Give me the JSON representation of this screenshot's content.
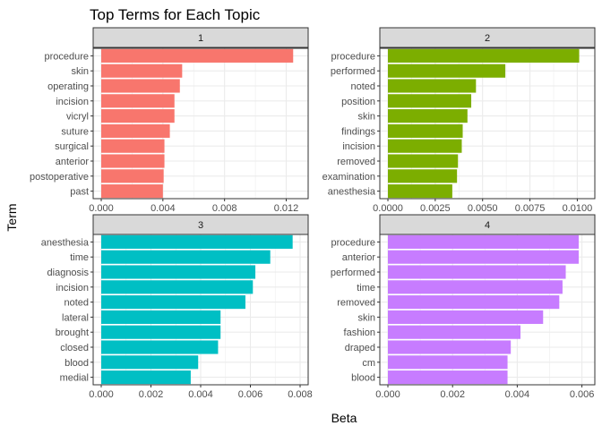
{
  "chart_data": {
    "type": "bar",
    "orientation": "horizontal",
    "title": "Top Terms for Each Topic",
    "xlabel": "Beta",
    "ylabel": "Term",
    "grid": true,
    "legend": "none",
    "panels": [
      {
        "label": "1",
        "color": "#F8766D",
        "xlim": [
          0,
          0.0129
        ],
        "xticks": [
          {
            "value": 0,
            "label": "0.000"
          },
          {
            "value": 0.004,
            "label": "0.004"
          },
          {
            "value": 0.008,
            "label": "0.008"
          },
          {
            "value": 0.012,
            "label": "0.012"
          }
        ],
        "categories": [
          "procedure",
          "skin",
          "operating",
          "incision",
          "vicryl",
          "suture",
          "surgical",
          "anterior",
          "postoperative",
          "past"
        ],
        "values": [
          0.01245,
          0.00525,
          0.0051,
          0.00475,
          0.00475,
          0.00445,
          0.0041,
          0.0041,
          0.00405,
          0.004
        ]
      },
      {
        "label": "2",
        "color": "#7CAE00",
        "xlim": [
          0,
          0.0105
        ],
        "xticks": [
          {
            "value": 0,
            "label": "0.0000"
          },
          {
            "value": 0.0025,
            "label": "0.0025"
          },
          {
            "value": 0.005,
            "label": "0.0050"
          },
          {
            "value": 0.0075,
            "label": "0.0075"
          },
          {
            "value": 0.01,
            "label": "0.0100"
          }
        ],
        "categories": [
          "procedure",
          "performed",
          "noted",
          "position",
          "skin",
          "findings",
          "incision",
          "removed",
          "examination",
          "anesthesia"
        ],
        "values": [
          0.0101,
          0.0062,
          0.00465,
          0.0044,
          0.0042,
          0.00395,
          0.0039,
          0.0037,
          0.00365,
          0.0034
        ]
      },
      {
        "label": "3",
        "color": "#00BFC4",
        "xlim": [
          0,
          0.008
        ],
        "xticks": [
          {
            "value": 0,
            "label": "0.000"
          },
          {
            "value": 0.002,
            "label": "0.002"
          },
          {
            "value": 0.004,
            "label": "0.004"
          },
          {
            "value": 0.006,
            "label": "0.006"
          },
          {
            "value": 0.008,
            "label": "0.008"
          }
        ],
        "categories": [
          "anesthesia",
          "time",
          "diagnosis",
          "incision",
          "noted",
          "lateral",
          "brought",
          "closed",
          "blood",
          "medial"
        ],
        "values": [
          0.0077,
          0.0068,
          0.0062,
          0.0061,
          0.0058,
          0.0048,
          0.0048,
          0.0047,
          0.0039,
          0.0036
        ]
      },
      {
        "label": "4",
        "color": "#C77CFF",
        "xlim": [
          0,
          0.00615
        ],
        "xticks": [
          {
            "value": 0,
            "label": "0.000"
          },
          {
            "value": 0.002,
            "label": "0.002"
          },
          {
            "value": 0.004,
            "label": "0.004"
          },
          {
            "value": 0.006,
            "label": "0.006"
          }
        ],
        "categories": [
          "procedure",
          "anterior",
          "performed",
          "time",
          "removed",
          "skin",
          "fashion",
          "draped",
          "cm",
          "blood"
        ],
        "values": [
          0.0059,
          0.0059,
          0.0055,
          0.0054,
          0.0053,
          0.0048,
          0.0041,
          0.0038,
          0.0037,
          0.0037
        ]
      }
    ]
  }
}
